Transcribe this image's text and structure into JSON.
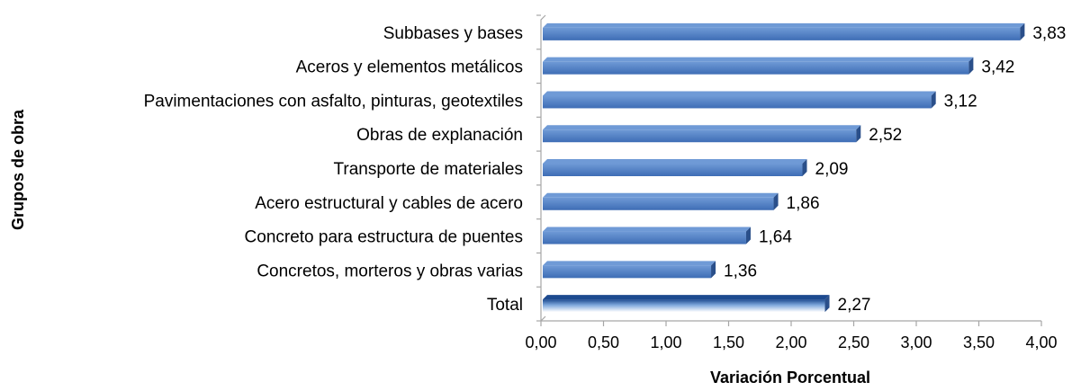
{
  "chart_data": {
    "type": "bar",
    "orientation": "horizontal",
    "title": "",
    "xlabel": "Variación Porcentual",
    "ylabel": "Grupos de obra",
    "xlim": [
      0,
      4
    ],
    "x_ticks": [
      "0,00",
      "0,50",
      "1,00",
      "1,50",
      "2,00",
      "2,50",
      "3,00",
      "3,50",
      "4,00"
    ],
    "x_tick_values": [
      0,
      0.5,
      1,
      1.5,
      2,
      2.5,
      3,
      3.5,
      4
    ],
    "grid": false,
    "legend": "none",
    "categories": [
      "Subbases y bases",
      "Aceros y elementos metálicos",
      "Pavimentaciones con asfalto, pinturas, geotextiles",
      "Obras de explanación",
      "Transporte de materiales",
      "Acero estructural y cables de acero",
      "Concreto para estructura de puentes",
      "Concretos, morteros y obras varias",
      "Total"
    ],
    "values": [
      3.83,
      3.42,
      3.12,
      2.52,
      2.09,
      1.86,
      1.64,
      1.36,
      2.27
    ],
    "value_labels": [
      "3,83",
      "3,42",
      "3,12",
      "2,52",
      "2,09",
      "1,86",
      "1,64",
      "1,36",
      "2,27"
    ],
    "highlight_category": "Total",
    "colors": {
      "bar_top": "#6f9ad6",
      "bar_bottom": "#3e6db5",
      "bar_side": "#2a4f8a",
      "total_top": "#1d4a8f",
      "total_bottom": "#ffffff",
      "axis": "#a6a6a6"
    }
  }
}
